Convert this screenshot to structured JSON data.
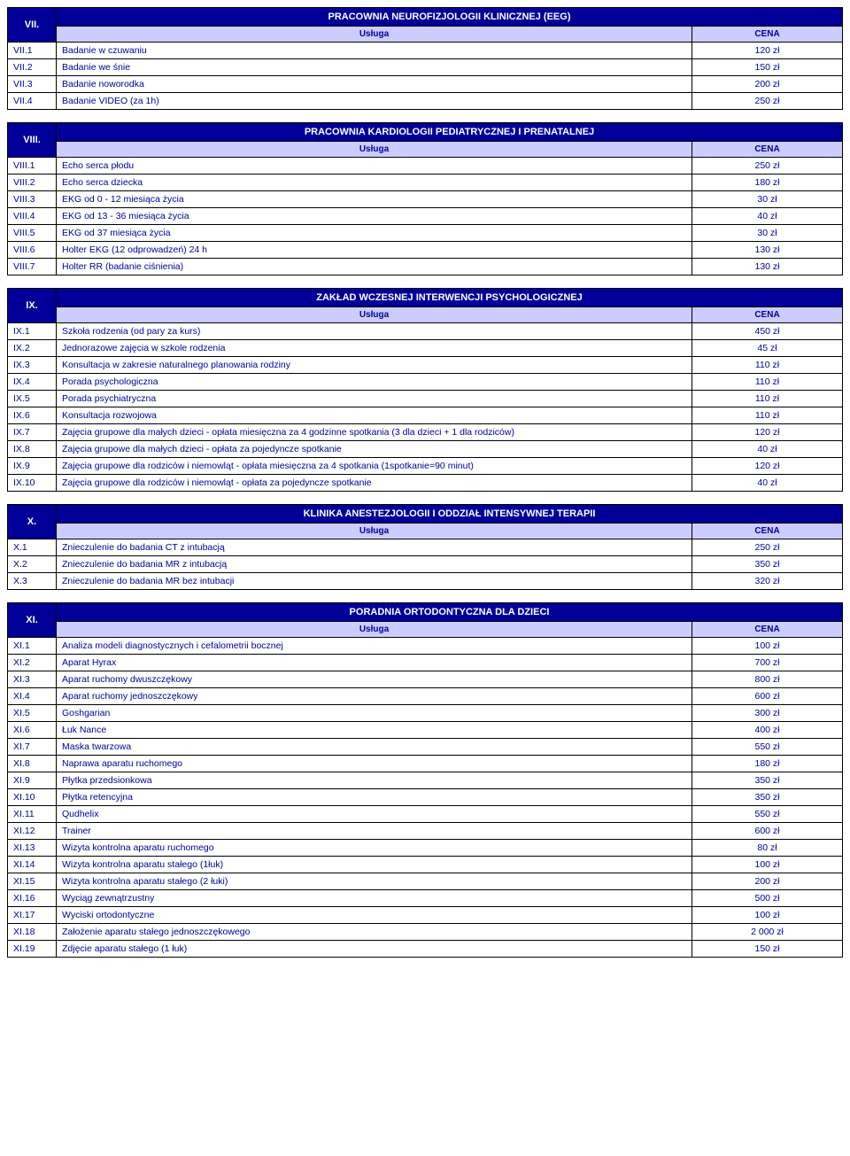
{
  "colors": {
    "header_bg": "#000099",
    "header_fg": "#ffffff",
    "subheader_bg": "#ccccff",
    "subheader_fg": "#000099",
    "cell_fg": "#000099",
    "border": "#000000",
    "page_bg": "#ffffff"
  },
  "typography": {
    "family": "Arial",
    "base_size_pt": 10.5,
    "header_size_pt": 11,
    "header_weight": "bold"
  },
  "column_headers": {
    "service": "Usługa",
    "price": "CENA"
  },
  "sections": [
    {
      "num": "VII.",
      "title": "PRACOWNIA NEUROFIZJOLOGII KLINICZNEJ (EEG)",
      "rows": [
        {
          "code": "VII.1",
          "label": "Badanie w czuwaniu",
          "price": "120 zł"
        },
        {
          "code": "VII.2",
          "label": "Badanie we śnie",
          "price": "150 zł"
        },
        {
          "code": "VII.3",
          "label": "Badanie noworodka",
          "price": "200 zł"
        },
        {
          "code": "VII.4",
          "label": "Badanie VIDEO (za 1h)",
          "price": "250 zł"
        }
      ]
    },
    {
      "num": "VIII.",
      "title": "PRACOWNIA KARDIOLOGII PEDIATRYCZNEJ I PRENATALNEJ",
      "rows": [
        {
          "code": "VIII.1",
          "label": "Echo serca płodu",
          "price": "250 zł"
        },
        {
          "code": "VIII.2",
          "label": "Echo serca dziecka",
          "price": "180 zł"
        },
        {
          "code": "VIII.3",
          "label": "EKG od 0 - 12 miesiąca życia",
          "price": "30 zł"
        },
        {
          "code": "VIII.4",
          "label": "EKG od 13 - 36 miesiąca życia",
          "price": "40 zł"
        },
        {
          "code": "VIII.5",
          "label": "EKG od 37 miesiąca życia",
          "price": "30 zł"
        },
        {
          "code": "VIII.6",
          "label": "Holter EKG (12 odprowadzeń) 24 h",
          "price": "130 zł"
        },
        {
          "code": "VIII.7",
          "label": "Holter RR (badanie ciśnienia)",
          "price": "130 zł"
        }
      ]
    },
    {
      "num": "IX.",
      "title": "ZAKŁAD WCZESNEJ INTERWENCJI PSYCHOLOGICZNEJ",
      "rows": [
        {
          "code": "IX.1",
          "label": "Szkoła rodzenia (od pary za kurs)",
          "price": "450 zł"
        },
        {
          "code": "IX.2",
          "label": "Jednorazowe zajęcia w szkole rodzenia",
          "price": "45 zł"
        },
        {
          "code": "IX.3",
          "label": "Konsultacja w zakresie naturalnego planowania rodziny",
          "price": "110 zł"
        },
        {
          "code": "IX.4",
          "label": "Porada psychologiczna",
          "price": "110 zł"
        },
        {
          "code": "IX.5",
          "label": "Porada psychiatryczna",
          "price": "110 zł"
        },
        {
          "code": "IX.6",
          "label": "Konsultacja rozwojowa",
          "price": "110 zł"
        },
        {
          "code": "IX.7",
          "label": "Zajęcia grupowe dla małych dzieci  - opłata miesięczna  za 4 godzinne spotkania (3 dla dzieci + 1 dla rodziców)",
          "price": "120 zł"
        },
        {
          "code": "IX.8",
          "label": "Zajęcia grupowe dla małych dzieci  - opłata za pojedyncze spotkanie",
          "price": "40 zł"
        },
        {
          "code": "IX.9",
          "label": "Zajęcia grupowe dla rodziców i niemowląt - opłata miesięczna  za 4 spotkania (1spotkanie=90 minut)",
          "price": "120 zł"
        },
        {
          "code": "IX.10",
          "label": "Zajęcia grupowe dla rodziców i niemowląt - opłata za pojedyncze spotkanie",
          "price": "40 zł"
        }
      ]
    },
    {
      "num": "X.",
      "title": "KLINIKA ANESTEZJOLOGII I ODDZIAŁ INTENSYWNEJ TERAPII",
      "rows": [
        {
          "code": "X.1",
          "label": "Znieczulenie do badania CT z intubacją",
          "price": "250 zł"
        },
        {
          "code": "X.2",
          "label": "Znieczulenie do badania MR z intubacją",
          "price": "350 zł"
        },
        {
          "code": "X.3",
          "label": "Znieczulenie do badania MR bez intubacji",
          "price": "320 zł"
        }
      ]
    },
    {
      "num": "XI.",
      "title": "PORADNIA ORTODONTYCZNA DLA DZIECI",
      "rows": [
        {
          "code": "XI.1",
          "label": "Analiza modeli diagnostycznych i cefalometrii bocznej",
          "price": "100 zł"
        },
        {
          "code": "XI.2",
          "label": "Aparat Hyrax",
          "price": "700 zł"
        },
        {
          "code": "XI.3",
          "label": "Aparat ruchomy dwuszczękowy",
          "price": "800 zł"
        },
        {
          "code": "XI.4",
          "label": "Aparat ruchomy jednoszczękowy",
          "price": "600 zł"
        },
        {
          "code": "XI.5",
          "label": "Goshgarian",
          "price": "300 zł"
        },
        {
          "code": "XI.6",
          "label": "Łuk Nance",
          "price": "400 zł"
        },
        {
          "code": "XI.7",
          "label": "Maska twarzowa",
          "price": "550 zł"
        },
        {
          "code": "XI.8",
          "label": "Naprawa aparatu ruchomego",
          "price": "180 zł"
        },
        {
          "code": "XI.9",
          "label": "Płytka przedsionkowa",
          "price": "350 zł"
        },
        {
          "code": "XI.10",
          "label": "Płytka retencyjna",
          "price": "350 zł"
        },
        {
          "code": "XI.11",
          "label": "Qudhelix",
          "price": "550 zł"
        },
        {
          "code": "XI.12",
          "label": "Trainer",
          "price": "600 zł"
        },
        {
          "code": "XI.13",
          "label": "Wizyta kontrolna aparatu ruchomego",
          "price": "80 zł"
        },
        {
          "code": "XI.14",
          "label": "Wizyta kontrolna aparatu stałego (1łuk)",
          "price": "100 zł"
        },
        {
          "code": "XI.15",
          "label": "Wizyta kontrolna aparatu stałego (2 łuki)",
          "price": "200 zł"
        },
        {
          "code": "XI.16",
          "label": "Wyciąg zewnątrzustny",
          "price": "500 zł"
        },
        {
          "code": "XI.17",
          "label": "Wyciski ortodontyczne",
          "price": "100 zł"
        },
        {
          "code": "XI.18",
          "label": "Założenie aparatu stałego jednoszczękowego",
          "price": "2 000 zł"
        },
        {
          "code": "XI.19",
          "label": "Zdjęcie aparatu stałego (1 łuk)",
          "price": "150 zł"
        }
      ]
    }
  ]
}
